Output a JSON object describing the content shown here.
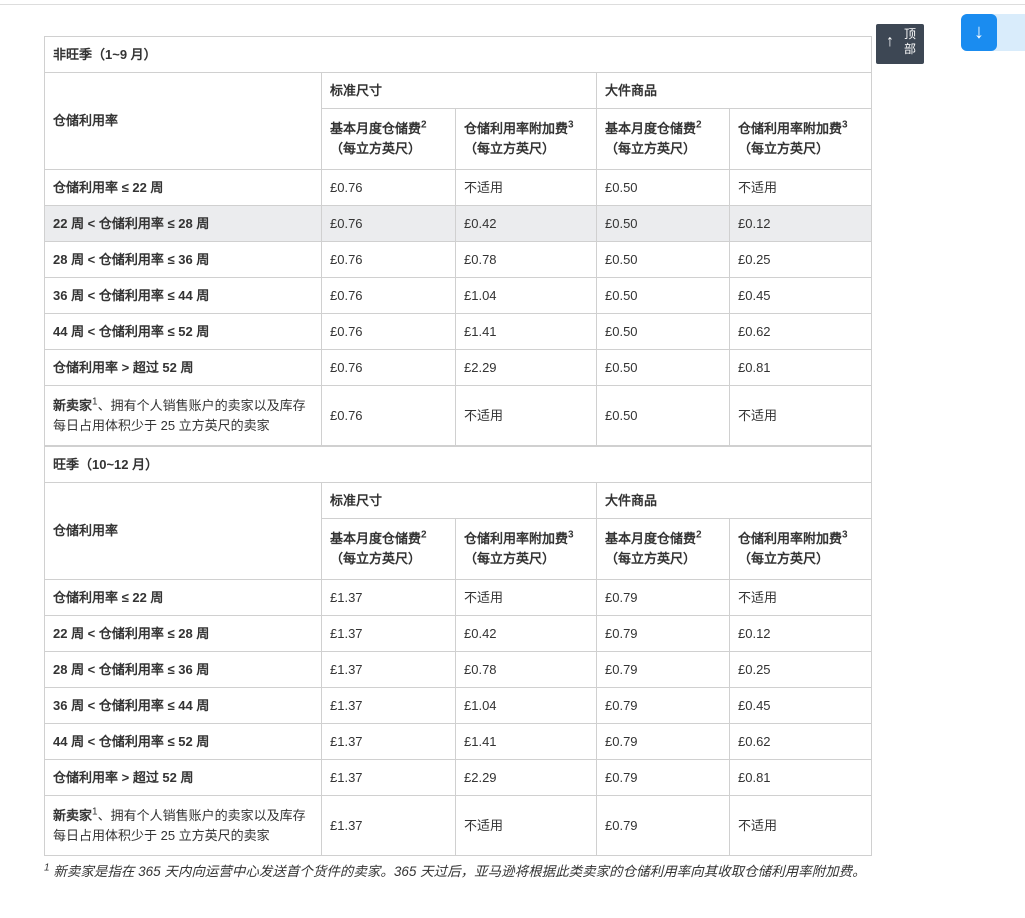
{
  "scroll_top": {
    "arrow": "↑",
    "label_1": "顶",
    "label_2": "部",
    "icon": "arrow-up-icon"
  },
  "scroll_down": {
    "arrow": "↓",
    "icon": "arrow-down-icon"
  },
  "sections": [
    {
      "title": "非旺季（1~9 月）",
      "row_header": "仓储利用率",
      "group_standard": "标准尺寸",
      "group_oversize": "大件商品",
      "col_base": "基本月度仓储费",
      "col_base_sup": "2",
      "col_surcharge": "仓储利用率附加费",
      "col_surcharge_sup": "3",
      "unit": "（每立方英尺）",
      "rows": [
        [
          "仓储利用率 ≤ 22 周",
          "£0.76",
          "不适用",
          "£0.50",
          "不适用"
        ],
        [
          "22 周 < 仓储利用率 ≤ 28 周",
          "£0.76",
          "£0.42",
          "£0.50",
          "£0.12"
        ],
        [
          "28 周 < 仓储利用率 ≤ 36 周",
          "£0.76",
          "£0.78",
          "£0.50",
          "£0.25"
        ],
        [
          "36 周 < 仓储利用率 ≤ 44 周",
          "£0.76",
          "£1.04",
          "£0.50",
          "£0.45"
        ],
        [
          "44 周 < 仓储利用率 ≤ 52 周",
          "£0.76",
          "£1.41",
          "£0.50",
          "£0.62"
        ],
        [
          "仓储利用率 > 超过 52 周",
          "£0.76",
          "£2.29",
          "£0.50",
          "£0.81"
        ]
      ],
      "new_seller": {
        "label_a": "新卖家",
        "sup": "1",
        "label_b": "、拥有个人销售账户的卖家以及库存每日占用体积少于 25 立方英尺的卖家",
        "values": [
          "£0.76",
          "不适用",
          "£0.50",
          "不适用"
        ]
      }
    },
    {
      "title": "旺季（10~12 月）",
      "row_header": "仓储利用率",
      "group_standard": "标准尺寸",
      "group_oversize": "大件商品",
      "col_base": "基本月度仓储费",
      "col_base_sup": "2",
      "col_surcharge": "仓储利用率附加费",
      "col_surcharge_sup": "3",
      "unit": "（每立方英尺）",
      "rows": [
        [
          "仓储利用率 ≤ 22 周",
          "£1.37",
          "不适用",
          "£0.79",
          "不适用"
        ],
        [
          "22 周 < 仓储利用率 ≤ 28 周",
          "£1.37",
          "£0.42",
          "£0.79",
          "£0.12"
        ],
        [
          "28 周 < 仓储利用率 ≤ 36 周",
          "£1.37",
          "£0.78",
          "£0.79",
          "£0.25"
        ],
        [
          "36 周 < 仓储利用率 ≤ 44 周",
          "£1.37",
          "£1.04",
          "£0.79",
          "£0.45"
        ],
        [
          "44 周 < 仓储利用率 ≤ 52 周",
          "£1.37",
          "£1.41",
          "£0.79",
          "£0.62"
        ],
        [
          "仓储利用率 > 超过 52 周",
          "£1.37",
          "£2.29",
          "£0.79",
          "£0.81"
        ]
      ],
      "new_seller": {
        "label_a": "新卖家",
        "sup": "1",
        "label_b": "、拥有个人销售账户的卖家以及库存每日占用体积少于 25 立方英尺的卖家",
        "values": [
          "£1.37",
          "不适用",
          "£0.79",
          "不适用"
        ]
      }
    }
  ],
  "highlight_row": {
    "section": 0,
    "row": 1,
    "color": "#ebecee"
  },
  "footnote": {
    "sup": "1",
    "text": " 新卖家是指在 365 天内向运营中心发送首个货件的卖家。365 天过后，亚马逊将根据此类卖家的仓储利用率向其收取仓储利用率附加费。"
  }
}
